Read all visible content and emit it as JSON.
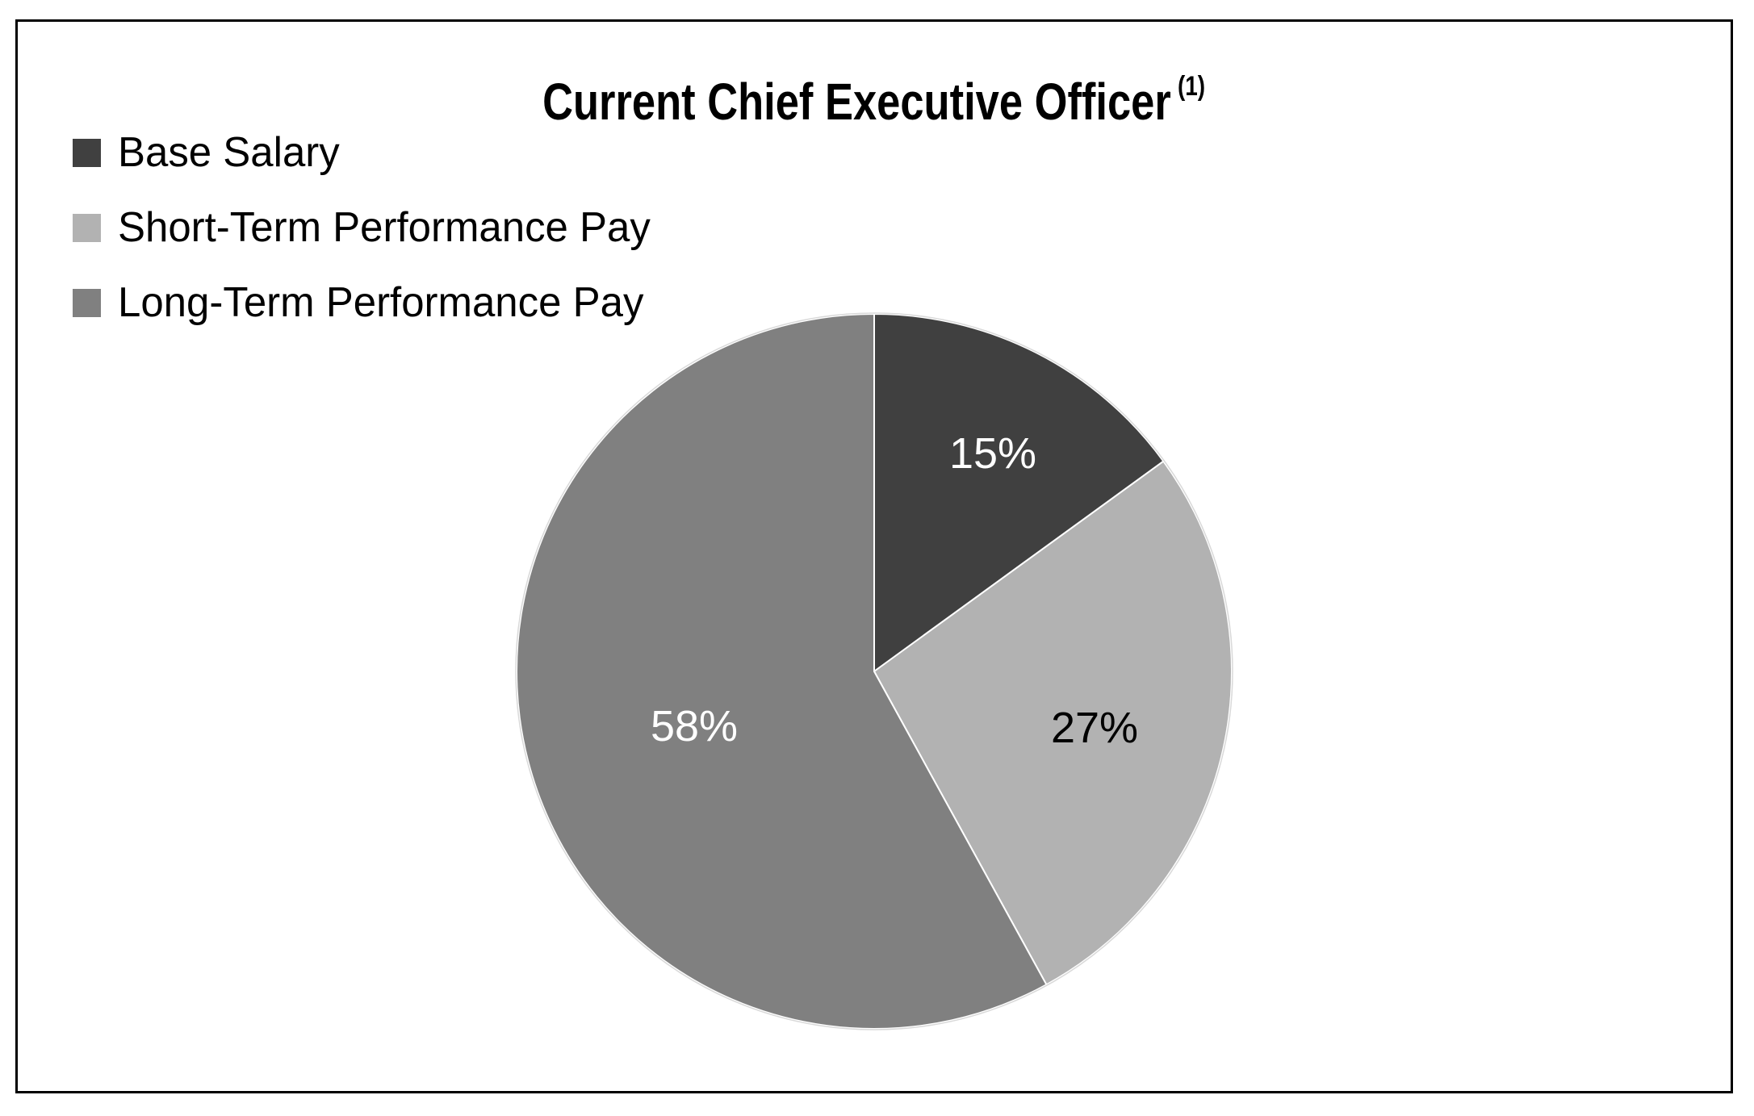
{
  "chart": {
    "title": "Current Chief Executive Officer",
    "title_superscript": "(1)",
    "frame_border_color": "#000000"
  },
  "legend": {
    "items": [
      {
        "label": "Base Salary",
        "color": "#404040"
      },
      {
        "label": "Short-Term Performance Pay",
        "color": "#b2b2b2"
      },
      {
        "label": "Long-Term Performance Pay",
        "color": "#808080"
      }
    ]
  },
  "slices": [
    {
      "label": "Base Salary",
      "value": 15,
      "display": "15%",
      "color": "#404040",
      "label_color": "#ffffff"
    },
    {
      "label": "Short-Term Performance Pay",
      "value": 27,
      "display": "27%",
      "color": "#b2b2b2",
      "label_color": "#000000"
    },
    {
      "label": "Long-Term Performance Pay",
      "value": 58,
      "display": "58%",
      "color": "#808080",
      "label_color": "#ffffff"
    }
  ],
  "chart_data": {
    "type": "pie",
    "title": "Current Chief Executive Officer (1)",
    "categories": [
      "Base Salary",
      "Short-Term Performance Pay",
      "Long-Term Performance Pay"
    ],
    "values": [
      15,
      27,
      58
    ],
    "unit": "%",
    "data_labels": [
      "15%",
      "27%",
      "58%"
    ],
    "colors": [
      "#404040",
      "#b2b2b2",
      "#808080"
    ],
    "start_angle_deg": 0,
    "direction": "clockwise",
    "legend_position": "top-left",
    "xlabel": "",
    "ylabel": ""
  }
}
